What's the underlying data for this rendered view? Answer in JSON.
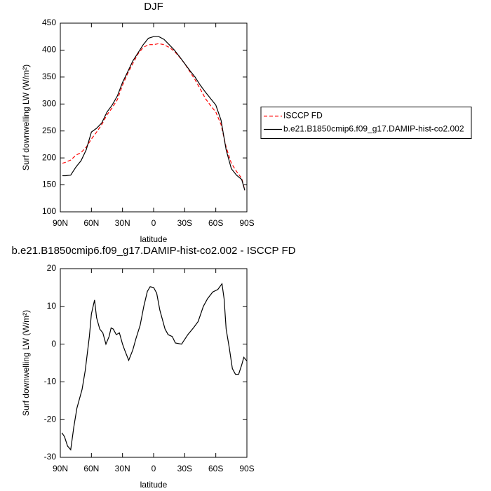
{
  "chart_data": [
    {
      "type": "line",
      "title": "DJF",
      "x_label": "latitude",
      "y_label": "Surf downwelling LW (W/m²)",
      "x": [
        88,
        85,
        80,
        75,
        70,
        65,
        60,
        55,
        50,
        45,
        40,
        35,
        30,
        25,
        20,
        15,
        10,
        5,
        0,
        -5,
        -10,
        -15,
        -20,
        -25,
        -30,
        -35,
        -40,
        -45,
        -50,
        -55,
        -60,
        -65,
        -70,
        -75,
        -80,
        -85,
        -88
      ],
      "series": [
        {
          "name": "ISCCP FD",
          "color": "#ff0000",
          "style": "dashed",
          "values": [
            190,
            192,
            196,
            205,
            210,
            220,
            235,
            248,
            262,
            280,
            293,
            308,
            335,
            357,
            375,
            393,
            405,
            410,
            410,
            412,
            410,
            405,
            398,
            387,
            375,
            360,
            345,
            328,
            310,
            297,
            285,
            262,
            220,
            190,
            175,
            162,
            140
          ]
        },
        {
          "name": "b.e21.B1850cmip6.f09_g17.DAMIP-hist-co2.002",
          "color": "#000000",
          "style": "solid",
          "values": [
            167,
            167,
            168,
            183,
            195,
            215,
            248,
            255,
            265,
            285,
            298,
            315,
            340,
            360,
            380,
            395,
            410,
            422,
            425,
            425,
            420,
            410,
            400,
            388,
            375,
            362,
            350,
            335,
            322,
            310,
            298,
            270,
            215,
            180,
            168,
            160,
            140
          ]
        }
      ],
      "xlim": [
        90,
        -90
      ],
      "xticks": [
        {
          "value": 90,
          "label": "90N"
        },
        {
          "value": 60,
          "label": "60N"
        },
        {
          "value": 30,
          "label": "30N"
        },
        0,
        {
          "value": -30,
          "label": "30S"
        },
        {
          "value": -60,
          "label": "60S"
        },
        {
          "value": -90,
          "label": "90S"
        }
      ],
      "ylim": [
        100,
        450
      ],
      "yticks": [
        100,
        150,
        200,
        250,
        300,
        350,
        400,
        450
      ],
      "legend": "right"
    },
    {
      "type": "line",
      "title": "b.e21.B1850cmip6.f09_g17.DAMIP-hist-co2.002 - ISCCP FD",
      "x_label": "latitude",
      "y_label": "Surf downwelling LW (W/m²)",
      "x": [
        88.6,
        86,
        83,
        80,
        77,
        74,
        69,
        66,
        62,
        60,
        57,
        55,
        52,
        49,
        46,
        43,
        41,
        39,
        36,
        33,
        30,
        28,
        24,
        20,
        17,
        13,
        9.5,
        6,
        3.4,
        0,
        -3,
        -6,
        -11,
        -14,
        -18,
        -21,
        -27,
        -33,
        -39,
        -43,
        -48,
        -52,
        -57,
        -62,
        -66,
        -68,
        -70,
        -73,
        -76,
        -79,
        -82,
        -85,
        -87,
        -90
      ],
      "values": [
        -23.5,
        -24.5,
        -27,
        -28,
        -22,
        -17,
        -12,
        -7,
        2,
        8,
        11.7,
        7,
        4,
        3,
        0,
        2,
        4.3,
        4,
        2.5,
        3,
        0,
        -1.5,
        -4.3,
        -1.5,
        1.5,
        5,
        10,
        14,
        15.2,
        15,
        13.5,
        9,
        4,
        2.5,
        2,
        0.3,
        0,
        2.5,
        4.5,
        6,
        10,
        12,
        13.8,
        14.5,
        16,
        12,
        4,
        -1,
        -6.5,
        -8,
        -8,
        -5.5,
        -3.5,
        -4.5
      ],
      "color": "#000000",
      "xlim": [
        90,
        -90
      ],
      "xticks": [
        {
          "value": 90,
          "label": "90N"
        },
        {
          "value": 60,
          "label": "60N"
        },
        {
          "value": 30,
          "label": "30N"
        },
        0,
        {
          "value": -30,
          "label": "30S"
        },
        {
          "value": -60,
          "label": "60S"
        },
        {
          "value": -90,
          "label": "90S"
        }
      ],
      "ylim": [
        -30,
        20
      ],
      "yticks": [
        -30,
        -20,
        -10,
        0,
        10,
        20
      ]
    }
  ]
}
